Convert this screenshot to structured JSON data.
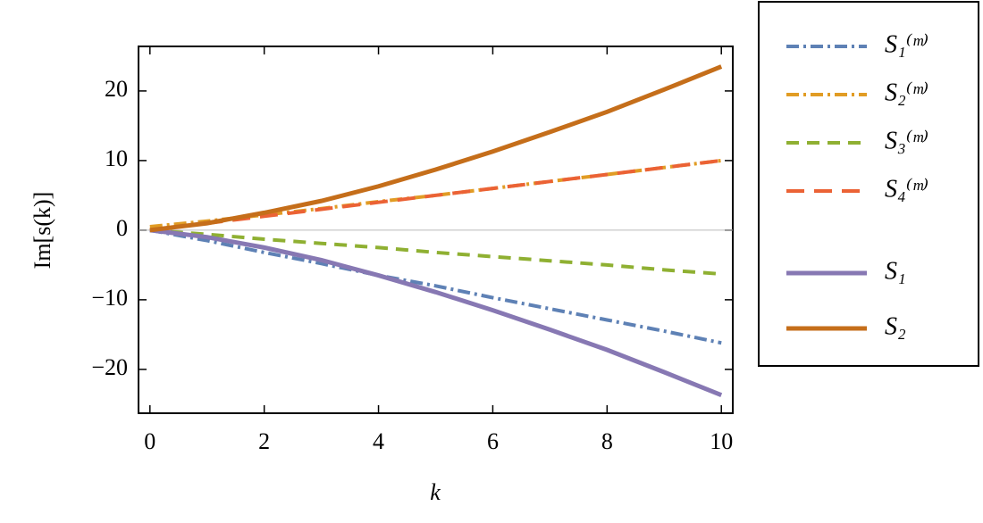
{
  "chart_data": {
    "type": "line",
    "xlabel": "k",
    "ylabel": "Im[s(k)]",
    "x": [
      0,
      1,
      2,
      3,
      4,
      5,
      6,
      7,
      8,
      9,
      10
    ],
    "series": [
      {
        "name": "S₁⁽ᵐ⁾",
        "color": "#5e81b5",
        "style": "dashdot",
        "values": [
          0,
          -1.5,
          -3.2,
          -4.8,
          -6.5,
          -8,
          -9.7,
          -11.3,
          -12.9,
          -14.5,
          -16.2
        ]
      },
      {
        "name": "S₂⁽ᵐ⁾",
        "color": "#e19c24",
        "style": "dashdot",
        "values": [
          0.5,
          1.3,
          2.2,
          3.1,
          4.1,
          5,
          6,
          7,
          8,
          9,
          10
        ]
      },
      {
        "name": "S₃⁽ᵐ⁾",
        "color": "#8fb032",
        "style": "dashed",
        "values": [
          0,
          -0.6,
          -1.3,
          -1.9,
          -2.5,
          -3.2,
          -3.8,
          -4.4,
          -5,
          -5.7,
          -6.3
        ]
      },
      {
        "name": "S₄⁽ᵐ⁾",
        "color": "#eb6235",
        "style": "longdash",
        "values": [
          0,
          1,
          2,
          3,
          4,
          5,
          6,
          7,
          8,
          9,
          10
        ]
      },
      {
        "name": "S₁",
        "color": "#8778b3",
        "style": "solid",
        "values": [
          0,
          -1,
          -2.5,
          -4.3,
          -6.5,
          -8.9,
          -11.5,
          -14.3,
          -17.2,
          -20.4,
          -23.7
        ]
      },
      {
        "name": "S₂",
        "color": "#c56e1a",
        "style": "solid",
        "values": [
          0,
          1,
          2.5,
          4.2,
          6.3,
          8.7,
          11.3,
          14.1,
          17,
          20.2,
          23.5
        ]
      }
    ],
    "xlim": [
      -0.2,
      10.2
    ],
    "ylim": [
      -26.3,
      26.4
    ],
    "xticks": [
      0,
      2,
      4,
      6,
      8,
      10
    ],
    "yticks": [
      {
        "value": -20,
        "label": "−20"
      },
      {
        "value": -10,
        "label": "−10"
      },
      0,
      10,
      20
    ]
  }
}
